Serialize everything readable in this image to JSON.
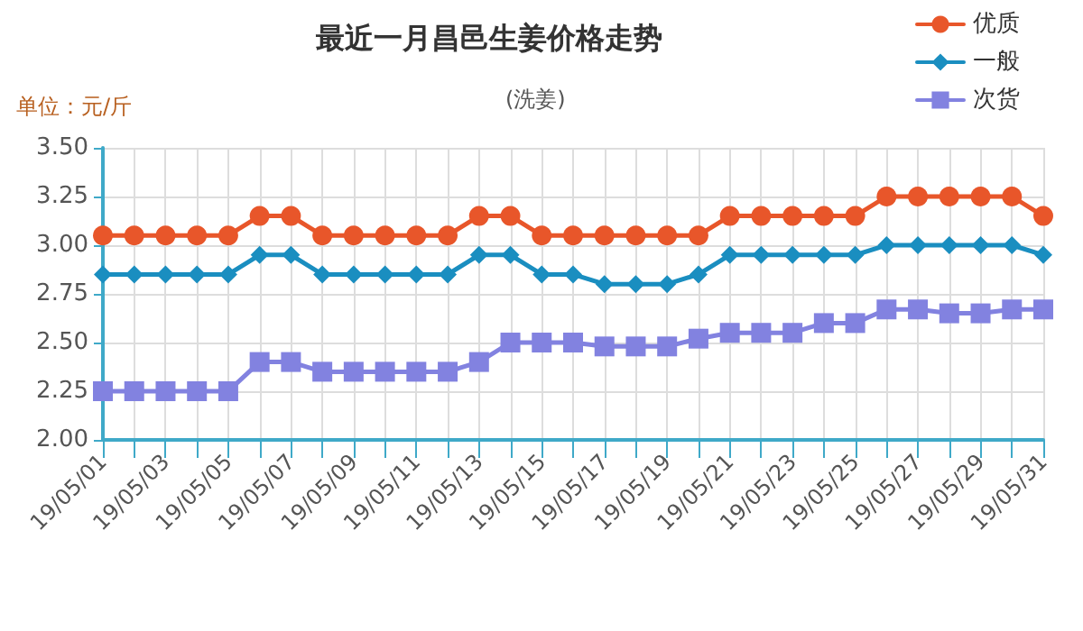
{
  "chart_data": {
    "type": "line",
    "title": "最近一月昌邑生姜价格走势",
    "subtitle": "(洗姜)",
    "ylabel": "单位：元/斤",
    "categories": [
      "19/05/01",
      null,
      "19/05/03",
      null,
      "19/05/05",
      null,
      "19/05/07",
      null,
      "19/05/09",
      null,
      "19/05/11",
      null,
      "19/05/13",
      null,
      "19/05/15",
      null,
      "19/05/17",
      null,
      "19/05/19",
      null,
      "19/05/21",
      null,
      "19/05/23",
      null,
      "19/05/25",
      null,
      "19/05/27",
      null,
      "19/05/29",
      null,
      "19/05/31"
    ],
    "series": [
      {
        "name": "优质",
        "color": "#e8562a",
        "marker": "circle",
        "values": [
          3.05,
          3.05,
          3.05,
          3.05,
          3.05,
          3.15,
          3.15,
          3.05,
          3.05,
          3.05,
          3.05,
          3.05,
          3.15,
          3.15,
          3.05,
          3.05,
          3.05,
          3.05,
          3.05,
          3.05,
          3.15,
          3.15,
          3.15,
          3.15,
          3.15,
          3.25,
          3.25,
          3.25,
          3.25,
          3.25,
          3.15
        ]
      },
      {
        "name": "一般",
        "color": "#1a8ec0",
        "marker": "diamond",
        "values": [
          2.85,
          2.85,
          2.85,
          2.85,
          2.85,
          2.95,
          2.95,
          2.85,
          2.85,
          2.85,
          2.85,
          2.85,
          2.95,
          2.95,
          2.85,
          2.85,
          2.8,
          2.8,
          2.8,
          2.85,
          2.95,
          2.95,
          2.95,
          2.95,
          2.95,
          3.0,
          3.0,
          3.0,
          3.0,
          3.0,
          2.95
        ]
      },
      {
        "name": "次货",
        "color": "#8282e0",
        "marker": "square",
        "values": [
          2.25,
          2.25,
          2.25,
          2.25,
          2.25,
          2.4,
          2.4,
          2.35,
          2.35,
          2.35,
          2.35,
          2.35,
          2.4,
          2.5,
          2.5,
          2.5,
          2.48,
          2.48,
          2.48,
          2.52,
          2.55,
          2.55,
          2.55,
          2.6,
          2.6,
          2.67,
          2.67,
          2.65,
          2.65,
          2.67,
          2.67
        ]
      }
    ],
    "ylim": [
      2,
      3.5
    ],
    "yticks": [
      {
        "value": 2,
        "label": "2.00"
      },
      {
        "value": 2.25,
        "label": "2.25"
      },
      {
        "value": 2.5,
        "label": "2.50"
      },
      {
        "value": 2.75,
        "label": "2.75"
      },
      {
        "value": 3,
        "label": "3.00"
      },
      {
        "value": 3.25,
        "label": "3.25"
      },
      {
        "value": 3.5,
        "label": "3.50"
      }
    ],
    "grid": true,
    "legend": "top right",
    "line_style": "solid"
  }
}
